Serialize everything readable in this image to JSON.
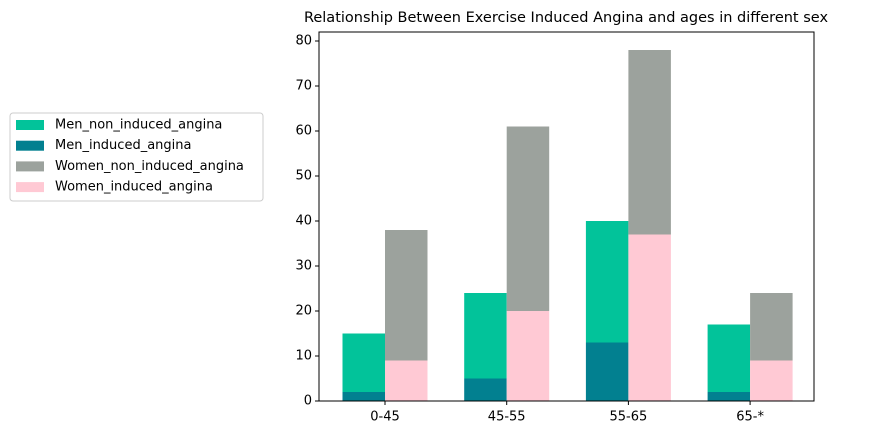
{
  "chart_data": {
    "type": "bar",
    "stacked": true,
    "title": "Relationship Between Exercise Induced Angina and ages in different sex",
    "categories": [
      "0-45",
      "45-55",
      "55-65",
      "65-*"
    ],
    "series": [
      {
        "name": "Men_non_induced_angina",
        "color": "#02c39a",
        "stack": 0,
        "values": [
          13,
          19,
          27,
          15
        ]
      },
      {
        "name": "Men_induced_angina",
        "color": "#028090",
        "stack": 0,
        "values": [
          2,
          5,
          13,
          2
        ]
      },
      {
        "name": "Women_non_induced_angina",
        "color": "#9ca29d",
        "stack": 1,
        "values": [
          29,
          41,
          41,
          15
        ]
      },
      {
        "name": "Women_induced_angina",
        "color": "#ffc9d4",
        "stack": 1,
        "values": [
          9,
          20,
          37,
          9
        ]
      }
    ],
    "ylim": [
      0,
      82
    ],
    "yticks": [
      0,
      10,
      20,
      30,
      40,
      50,
      60,
      70,
      80
    ],
    "legend": "left"
  }
}
